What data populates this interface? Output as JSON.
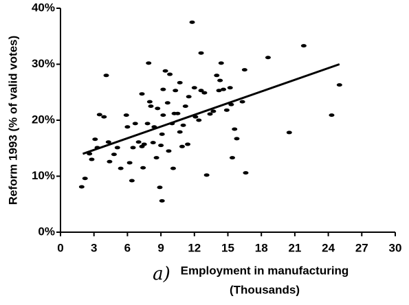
{
  "chart_data": {
    "type": "scatter",
    "ylabel": "Reform 1993 (% of valid votes)",
    "xlabel": [
      "Employment in manufacturing",
      "(Thousands)"
    ],
    "annotation": "a)",
    "xlim": [
      0,
      30
    ],
    "xticks": [
      0,
      3,
      6,
      9,
      12,
      15,
      18,
      21,
      24,
      27,
      30
    ],
    "ylim": [
      0,
      40
    ],
    "yticks": [
      {
        "value": 0,
        "label": "0%"
      },
      {
        "value": 10,
        "label": "10%"
      },
      {
        "value": 20,
        "label": "20%"
      },
      {
        "value": 30,
        "label": "30%"
      },
      {
        "value": 40,
        "label": "40%"
      }
    ],
    "color": "#000000",
    "x": [
      1.9,
      2.2,
      2.6,
      2.8,
      3.1,
      3.3,
      3.5,
      3.9,
      4.1,
      4.3,
      4.4,
      4.8,
      5.1,
      5.4,
      5.9,
      6.0,
      6.2,
      6.4,
      6.5,
      6.7,
      7.0,
      7.3,
      7.3,
      7.4,
      7.5,
      7.8,
      7.9,
      8.0,
      8.1,
      8.3,
      8.4,
      8.6,
      8.7,
      8.9,
      9.0,
      9.1,
      9.1,
      9.2,
      9.2,
      9.4,
      9.6,
      9.7,
      9.8,
      10.0,
      10.1,
      10.2,
      10.3,
      10.5,
      10.7,
      10.7,
      10.9,
      11.0,
      11.2,
      11.4,
      11.5,
      11.8,
      12.0,
      12.1,
      12.4,
      12.6,
      12.6,
      12.9,
      13.1,
      13.4,
      13.7,
      14.0,
      14.2,
      14.3,
      14.4,
      14.6,
      14.9,
      15.2,
      15.3,
      15.4,
      15.6,
      15.8,
      16.3,
      16.5,
      16.6,
      18.6,
      20.5,
      21.8,
      24.3,
      25.0
    ],
    "values": [
      8.1,
      9.6,
      14.0,
      13.0,
      16.6,
      15.1,
      21.0,
      20.6,
      28.0,
      16.1,
      12.6,
      13.9,
      15.1,
      11.4,
      20.9,
      18.8,
      12.4,
      9.2,
      15.1,
      19.4,
      16.1,
      15.3,
      24.7,
      11.5,
      15.7,
      19.4,
      30.2,
      23.3,
      22.5,
      16.0,
      18.8,
      13.3,
      22.1,
      8.0,
      15.5,
      5.6,
      17.5,
      20.9,
      25.5,
      28.8,
      23.1,
      14.5,
      28.2,
      19.4,
      11.4,
      21.2,
      25.3,
      21.2,
      17.9,
      26.7,
      15.3,
      19.1,
      22.5,
      15.7,
      24.2,
      37.5,
      25.8,
      20.6,
      20.0,
      32.0,
      25.3,
      24.9,
      10.2,
      21.1,
      21.6,
      28.0,
      25.3,
      27.1,
      30.2,
      25.5,
      21.8,
      25.8,
      22.8,
      13.3,
      18.4,
      16.7,
      23.3,
      29.0,
      10.6,
      31.2,
      17.8,
      33.3,
      20.9,
      26.3
    ],
    "trendline": {
      "x": [
        2,
        25
      ],
      "y": [
        14,
        30
      ]
    }
  }
}
